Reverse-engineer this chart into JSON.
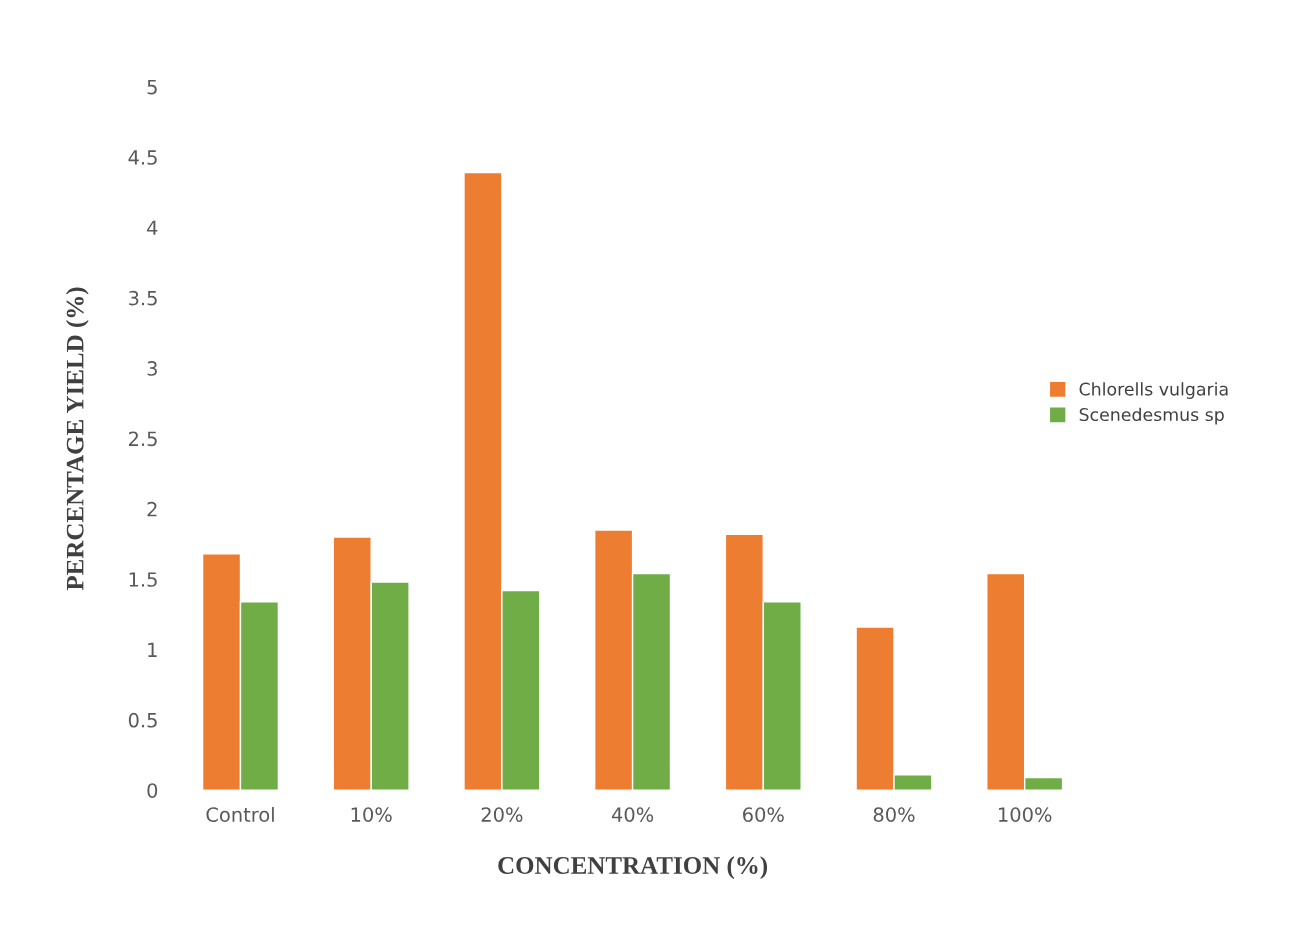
{
  "chart_data": {
    "type": "bar",
    "xlabel": "CONCENTRATION (%)",
    "ylabel": "PERCENTAGE YIELD (%)",
    "categories": [
      "Control",
      "10%",
      "20%",
      "40%",
      "60%",
      "80%",
      "100%"
    ],
    "series": [
      {
        "name": "Chlorells vulgaria",
        "color": "#ed7d31",
        "values": [
          1.68,
          1.8,
          4.39,
          1.85,
          1.82,
          1.16,
          1.54
        ]
      },
      {
        "name": "Scenedesmus sp",
        "color": "#70ad47",
        "values": [
          1.34,
          1.48,
          1.42,
          1.54,
          1.34,
          0.11,
          0.09
        ]
      }
    ],
    "ylim": [
      0,
      5
    ],
    "yticks": [
      0,
      0.5,
      1,
      1.5,
      2,
      2.5,
      3,
      3.5,
      4,
      4.5,
      5
    ],
    "grid": false,
    "legend": "right"
  }
}
